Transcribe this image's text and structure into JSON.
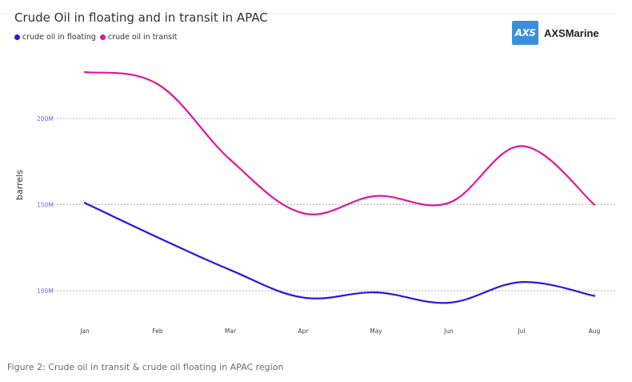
{
  "chart_data": {
    "type": "line",
    "title": "Crude Oil in floating and in transit in APAC",
    "xlabel": "",
    "ylabel": "barrels",
    "categories": [
      "Jan",
      "Feb",
      "Mar",
      "Apr",
      "May",
      "Jun",
      "Jul",
      "Aug"
    ],
    "ylim": [
      80000000,
      250000000
    ],
    "y_ticks": [
      100000000,
      150000000,
      200000000
    ],
    "y_tick_labels": [
      "100M",
      "150M",
      "200M"
    ],
    "grid": "horizontal dotted",
    "legend_position": "top-left",
    "series": [
      {
        "name": "crude oil in floating",
        "color": "#2a14e6",
        "values": [
          151000000,
          131000000,
          112000000,
          96000000,
          99000000,
          93000000,
          105000000,
          97000000
        ]
      },
      {
        "name": "crude oil in transit",
        "color": "#e0169b",
        "values": [
          227000000,
          220000000,
          176000000,
          145000000,
          155000000,
          151000000,
          184000000,
          150000000
        ]
      }
    ]
  },
  "logo": {
    "badge_text": "AXS",
    "name": "AXSMarine",
    "badge_color": "#3a8fdc"
  },
  "caption": "Figure 2: Crude oil in transit & crude oil floating in APAC region"
}
